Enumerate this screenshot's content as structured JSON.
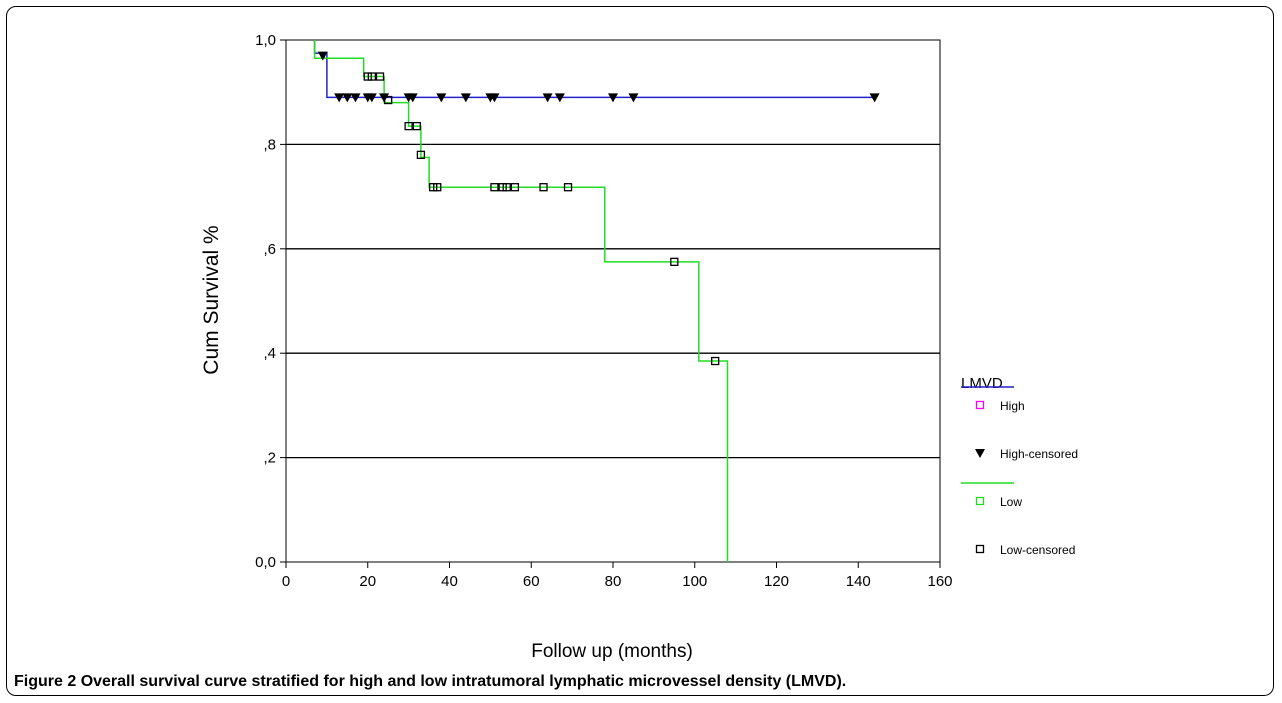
{
  "caption": {
    "label": "Figure 2",
    "text": "Overall survival curve stratified for high and low intratumoral lymphatic microvessel density (LMVD)."
  },
  "chart_data": {
    "type": "line",
    "subtype": "kaplan-meier-step",
    "title": "",
    "xlabel": "Follow up (months)",
    "ylabel": "Cum Survival %",
    "xlim": [
      0,
      160
    ],
    "ylim": [
      0,
      1
    ],
    "xticks": [
      0,
      20,
      40,
      60,
      80,
      100,
      120,
      140,
      160
    ],
    "xtick_labels": [
      "0",
      "20",
      "40",
      "60",
      "80",
      "100",
      "120",
      "140",
      "160"
    ],
    "yticks": [
      0,
      0.2,
      0.4,
      0.6,
      0.8,
      1.0
    ],
    "ytick_labels": [
      "0,0",
      ",2",
      ",4",
      ",6",
      ",8",
      "1,0"
    ],
    "grid": "horizontal",
    "legend_title": "LMVD",
    "legend_placement": "right",
    "legend": [
      {
        "label": "High",
        "kind": "line-with-marker",
        "line_color": "#2222cc",
        "marker_color": "#ff00ff"
      },
      {
        "label": "High-censored",
        "kind": "marker",
        "marker": "triangle-down",
        "color": "#000000"
      },
      {
        "label": "Low",
        "kind": "line-with-marker",
        "line_color": "#22dd22",
        "marker_color": "#22dd22"
      },
      {
        "label": "Low-censored",
        "kind": "marker",
        "marker": "square",
        "color": "#000000"
      }
    ],
    "series": [
      {
        "name": "High",
        "color": "#2222cc",
        "steps": [
          [
            7,
            1.0
          ],
          [
            7,
            0.975
          ],
          [
            10,
            0.975
          ],
          [
            10,
            0.89
          ],
          [
            144,
            0.89
          ]
        ],
        "censored": [
          [
            9,
            0.97
          ],
          [
            13,
            0.89
          ],
          [
            15,
            0.89
          ],
          [
            17,
            0.89
          ],
          [
            20,
            0.89
          ],
          [
            21,
            0.89
          ],
          [
            24,
            0.89
          ],
          [
            30,
            0.89
          ],
          [
            31,
            0.89
          ],
          [
            38,
            0.89
          ],
          [
            44,
            0.89
          ],
          [
            50,
            0.89
          ],
          [
            51,
            0.89
          ],
          [
            64,
            0.89
          ],
          [
            67,
            0.89
          ],
          [
            80,
            0.89
          ],
          [
            85,
            0.89
          ],
          [
            144,
            0.89
          ]
        ]
      },
      {
        "name": "Low",
        "color": "#22dd22",
        "steps": [
          [
            7,
            1.0
          ],
          [
            7,
            0.965
          ],
          [
            19,
            0.965
          ],
          [
            19,
            0.93
          ],
          [
            24,
            0.93
          ],
          [
            24,
            0.88
          ],
          [
            30,
            0.88
          ],
          [
            30,
            0.835
          ],
          [
            33,
            0.835
          ],
          [
            33,
            0.775
          ],
          [
            35,
            0.775
          ],
          [
            35,
            0.718
          ],
          [
            78,
            0.718
          ],
          [
            78,
            0.575
          ],
          [
            101,
            0.575
          ],
          [
            101,
            0.385
          ],
          [
            108,
            0.385
          ],
          [
            108,
            0.0
          ]
        ],
        "censored": [
          [
            20,
            0.93
          ],
          [
            21,
            0.93
          ],
          [
            23,
            0.93
          ],
          [
            25,
            0.885
          ],
          [
            30,
            0.835
          ],
          [
            32,
            0.835
          ],
          [
            33,
            0.78
          ],
          [
            36,
            0.718
          ],
          [
            37,
            0.718
          ],
          [
            51,
            0.718
          ],
          [
            53,
            0.718
          ],
          [
            54,
            0.718
          ],
          [
            56,
            0.718
          ],
          [
            63,
            0.718
          ],
          [
            69,
            0.718
          ],
          [
            95,
            0.575
          ],
          [
            105,
            0.385
          ]
        ]
      }
    ]
  }
}
